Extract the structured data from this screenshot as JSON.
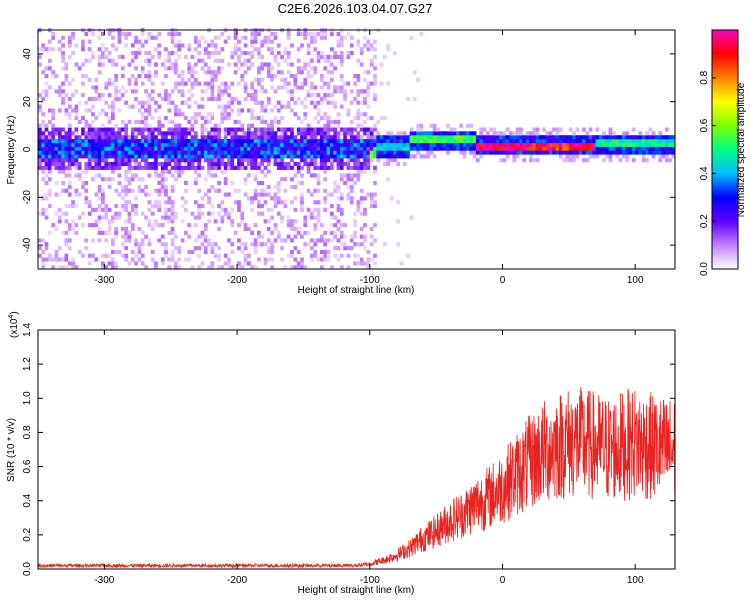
{
  "title": "C2E6.2026.103.04.07.G27",
  "chart_data": [
    {
      "type": "heatmap",
      "title": "C2E6.2026.103.04.07.G27",
      "xlabel": "Height of straight line (km)",
      "ylabel": "Frequency (Hz)",
      "xlim": [
        -350,
        130
      ],
      "ylim": [
        -50,
        50
      ],
      "x_ticks": [
        -300,
        -200,
        -100,
        0,
        100
      ],
      "y_ticks": [
        -40,
        -20,
        0,
        20,
        40
      ],
      "colorbar": {
        "label": "Normalized spectral amplitude",
        "range": [
          0.0,
          1.0
        ],
        "ticks": [
          0.0,
          0.2,
          0.4,
          0.6,
          0.8
        ],
        "tick_labels": [
          "0.0",
          "0.2",
          "0.4",
          "0.6",
          "0.8"
        ],
        "colormap": [
          "#ffffff",
          "#c080ff",
          "#6000ff",
          "#0000ff",
          "#00c0ff",
          "#00ff80",
          "#80ff00",
          "#ffff00",
          "#ff8000",
          "#ff0000",
          "#ff00c0"
        ]
      },
      "segments": [
        {
          "x_range": [
            -350,
            -100
          ],
          "description": "broadband noise",
          "center_freq": 0,
          "core_amplitude": 0.3
        },
        {
          "x_range": [
            -100,
            -70
          ],
          "center_freq": 0,
          "core_amplitude": 0.45
        },
        {
          "x_range": [
            -70,
            -20
          ],
          "center_freq": 3,
          "core_amplitude": 0.55
        },
        {
          "x_range": [
            -20,
            70
          ],
          "center_freq": 1,
          "core_amplitude": 0.95
        },
        {
          "x_range": [
            70,
            130
          ],
          "center_freq": 1.5,
          "core_amplitude": 0.5
        }
      ]
    },
    {
      "type": "line",
      "xlabel": "Height of straight line (km)",
      "ylabel": "SNR (10 * v/v)",
      "y_multiplier_label": "(x10",
      "y_multiplier_exponent": "4",
      "y_multiplier_suffix": ")",
      "xlim": [
        -350,
        130
      ],
      "ylim": [
        0.0,
        1.4
      ],
      "x_ticks": [
        -300,
        -200,
        -100,
        0,
        100
      ],
      "y_ticks": [
        0.0,
        0.2,
        0.4,
        0.6,
        0.8,
        1.0,
        1.2,
        1.4
      ],
      "y_tick_labels": [
        "0.0",
        "0.2",
        "0.4",
        "0.6",
        "0.8",
        "1.0",
        "1.2",
        "1.4"
      ],
      "color": "#e8221e",
      "series": [
        {
          "name": "SNR",
          "x": [
            -350,
            -300,
            -250,
            -200,
            -150,
            -110,
            -100,
            -90,
            -80,
            -70,
            -60,
            -50,
            -40,
            -30,
            -20,
            -10,
            0,
            10,
            20,
            30,
            40,
            50,
            60,
            70,
            80,
            90,
            100,
            110,
            120,
            130
          ],
          "values": [
            0.02,
            0.02,
            0.02,
            0.02,
            0.02,
            0.02,
            0.03,
            0.05,
            0.08,
            0.12,
            0.18,
            0.22,
            0.28,
            0.32,
            0.38,
            0.42,
            0.48,
            0.55,
            0.62,
            0.68,
            0.72,
            0.74,
            0.74,
            0.72,
            0.7,
            0.72,
            0.74,
            0.72,
            0.7,
            0.7
          ]
        }
      ]
    }
  ]
}
